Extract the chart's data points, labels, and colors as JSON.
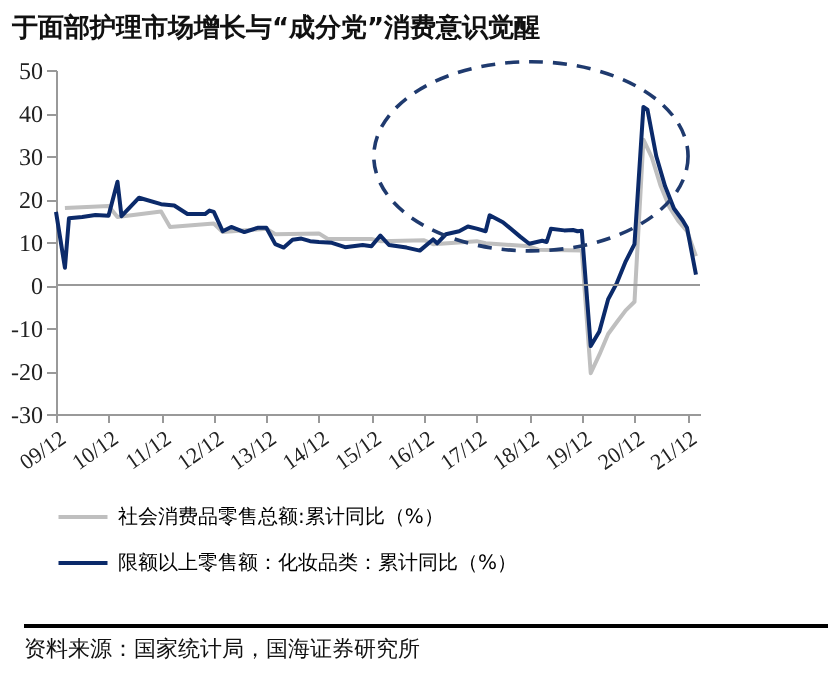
{
  "chart_data": {
    "type": "line",
    "title": "于面部护理市场增长与“成分党”消费意识觉醒",
    "annotations": [
      "资料来源：国家统计局，国海证券研究所"
    ],
    "xlim": [
      "2009-12",
      "2022-03"
    ],
    "ylim": [
      -30,
      50
    ],
    "yticks": [
      -30,
      -20,
      -10,
      0,
      10,
      20,
      30,
      40,
      50
    ],
    "xticks": [
      {
        "value": "2009-12",
        "label": "09/12"
      },
      {
        "value": "2010-12",
        "label": "10/12"
      },
      {
        "value": "2011-12",
        "label": "11/12"
      },
      {
        "value": "2012-12",
        "label": "12/12"
      },
      {
        "value": "2013-12",
        "label": "13/12"
      },
      {
        "value": "2014-12",
        "label": "14/12"
      },
      {
        "value": "2015-12",
        "label": "15/12"
      },
      {
        "value": "2016-12",
        "label": "16/12"
      },
      {
        "value": "2017-12",
        "label": "17/12"
      },
      {
        "value": "2018-12",
        "label": "18/12"
      },
      {
        "value": "2019-12",
        "label": "19/12"
      },
      {
        "value": "2020-12",
        "label": "20/12"
      },
      {
        "value": "2021-12",
        "label": "21/12"
      }
    ],
    "ref_lines": [
      {
        "axis": "y",
        "value": 0,
        "color": "#999999"
      }
    ],
    "legend": "bottom",
    "grid": false,
    "marker": "none",
    "line_style": "solid",
    "series": [
      {
        "name": "社会消费品零售总额:累计同比（%）",
        "color": "#bfbfbf",
        "x": [
          "2010-02",
          "2010-12",
          "2011-02",
          "2011-12",
          "2012-02",
          "2012-12",
          "2013-02",
          "2013-12",
          "2014-02",
          "2014-12",
          "2015-02",
          "2015-12",
          "2016-02",
          "2016-12",
          "2017-02",
          "2017-12",
          "2018-02",
          "2018-12",
          "2019-02",
          "2019-12",
          "2020-02",
          "2020-04",
          "2020-06",
          "2020-08",
          "2020-10",
          "2020-12",
          "2021-02",
          "2021-04",
          "2021-06",
          "2021-08",
          "2021-10",
          "2021-12",
          "2022-02"
        ],
        "values": [
          17.9,
          18.4,
          15.8,
          17.1,
          13.5,
          14.3,
          12.3,
          13.1,
          11.8,
          12.0,
          10.7,
          10.7,
          10.2,
          10.4,
          9.5,
          10.2,
          9.7,
          9.0,
          8.2,
          8.0,
          -20.5,
          -16.2,
          -11.4,
          -8.6,
          -5.9,
          -3.9,
          33.8,
          29.6,
          23.0,
          18.1,
          14.9,
          12.5,
          6.7
        ]
      },
      {
        "name": "限额以上零售额：化妆品类：累计同比（%）",
        "color": "#0b2a6a",
        "x": [
          "2009-12",
          "2010-02",
          "2010-03",
          "2010-06",
          "2010-09",
          "2010-12",
          "2011-02",
          "2011-03",
          "2011-07",
          "2011-12",
          "2012-03",
          "2012-06",
          "2012-10",
          "2012-11",
          "2012-12",
          "2013-02",
          "2013-04",
          "2013-07",
          "2013-10",
          "2013-12",
          "2014-02",
          "2014-04",
          "2014-06",
          "2014-08",
          "2014-10",
          "2014-12",
          "2015-03",
          "2015-06",
          "2015-10",
          "2015-12",
          "2016-02",
          "2016-04",
          "2016-08",
          "2016-11",
          "2017-02",
          "2017-03",
          "2017-05",
          "2017-08",
          "2017-10",
          "2017-12",
          "2018-02",
          "2018-03",
          "2018-06",
          "2018-10",
          "2018-12",
          "2019-03",
          "2019-04",
          "2019-05",
          "2019-08",
          "2019-10",
          "2019-11",
          "2019-12",
          "2020-02",
          "2020-04",
          "2020-06",
          "2020-08",
          "2020-10",
          "2020-12",
          "2021-02",
          "2021-03",
          "2021-05",
          "2021-07",
          "2021-09",
          "2021-11",
          "2021-12",
          "2022-02"
        ],
        "values": [
          17,
          4,
          15.5,
          15.8,
          16.3,
          16.1,
          24,
          16,
          20.3,
          18.8,
          18.5,
          16.5,
          16.5,
          17.3,
          17,
          12.5,
          13.5,
          12.3,
          13.3,
          13.3,
          9.5,
          8.7,
          10.5,
          10.8,
          10.2,
          10,
          9.8,
          8.8,
          9.3,
          9,
          11.5,
          9.3,
          8.7,
          8,
          10.6,
          9.7,
          11.8,
          12.5,
          13.6,
          13.1,
          12.5,
          16.2,
          14.6,
          11.2,
          9.6,
          10.3,
          10,
          13.1,
          12.7,
          12.8,
          12.5,
          12.6,
          -14.2,
          -10.8,
          -3.3,
          0.5,
          5.5,
          9.5,
          41.4,
          40.8,
          30,
          23,
          17.8,
          15,
          13.3,
          2.4
        ]
      }
    ]
  }
}
